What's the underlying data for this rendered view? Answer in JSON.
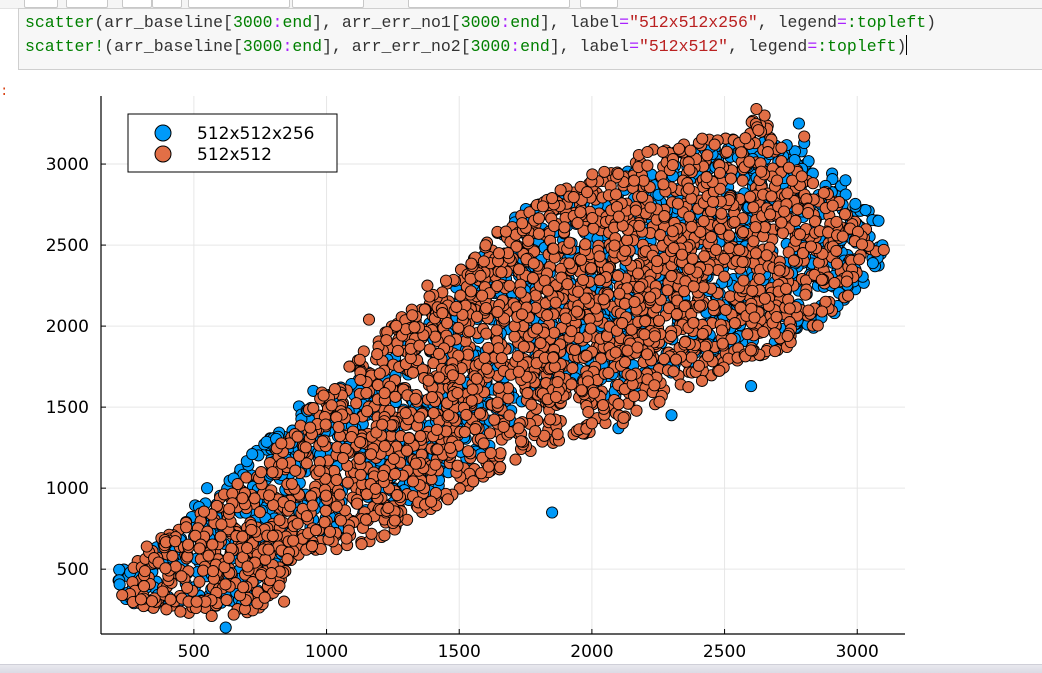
{
  "code_cell": {
    "line1": [
      {
        "t": "scatter",
        "c": "tok-fn"
      },
      {
        "t": "(arr_baseline[",
        "c": "tok-plain"
      },
      {
        "t": "3000",
        "c": "tok-num"
      },
      {
        "t": ":",
        "c": "tok-op"
      },
      {
        "t": "end",
        "c": "tok-kw"
      },
      {
        "t": "], arr_err_no1[",
        "c": "tok-plain"
      },
      {
        "t": "3000",
        "c": "tok-num"
      },
      {
        "t": ":",
        "c": "tok-op"
      },
      {
        "t": "end",
        "c": "tok-kw"
      },
      {
        "t": "], label",
        "c": "tok-plain"
      },
      {
        "t": "=",
        "c": "tok-op"
      },
      {
        "t": "\"512x512x256\"",
        "c": "tok-str"
      },
      {
        "t": ", legend",
        "c": "tok-plain"
      },
      {
        "t": "=",
        "c": "tok-op"
      },
      {
        "t": ":topleft",
        "c": "tok-fn"
      },
      {
        "t": ")",
        "c": "tok-plain"
      }
    ],
    "line2": [
      {
        "t": "scatter!",
        "c": "tok-fn"
      },
      {
        "t": "(arr_baseline[",
        "c": "tok-plain"
      },
      {
        "t": "3000",
        "c": "tok-num"
      },
      {
        "t": ":",
        "c": "tok-op"
      },
      {
        "t": "end",
        "c": "tok-kw"
      },
      {
        "t": "], arr_err_no2[",
        "c": "tok-plain"
      },
      {
        "t": "3000",
        "c": "tok-num"
      },
      {
        "t": ":",
        "c": "tok-op"
      },
      {
        "t": "end",
        "c": "tok-kw"
      },
      {
        "t": "], label",
        "c": "tok-plain"
      },
      {
        "t": "=",
        "c": "tok-op"
      },
      {
        "t": "\"512x512\"",
        "c": "tok-str"
      },
      {
        "t": ", legend",
        "c": "tok-plain"
      },
      {
        "t": "=",
        "c": "tok-op"
      },
      {
        "t": ":topleft",
        "c": "tok-fn"
      },
      {
        "t": ")",
        "c": "tok-plain"
      }
    ]
  },
  "output_prompt": ":",
  "chart_data": {
    "type": "scatter",
    "xlim": [
      150,
      3180
    ],
    "ylim": [
      100,
      3420
    ],
    "xticks": [
      500,
      1000,
      1500,
      2000,
      2500,
      3000
    ],
    "yticks": [
      500,
      1000,
      1500,
      2000,
      2500,
      3000
    ],
    "grid": true,
    "legend_position": "top-left",
    "marker": "circle",
    "series": [
      {
        "name": "512x512x256",
        "color": "#009af9",
        "cloud": [
          [
            210,
            260
          ],
          [
            310,
            270
          ],
          [
            560,
            300
          ],
          [
            750,
            240
          ],
          [
            900,
            800
          ],
          [
            1000,
            700
          ],
          [
            1500,
            1050
          ],
          [
            1850,
            1700
          ],
          [
            2100,
            1520
          ],
          [
            2400,
            1800
          ],
          [
            2700,
            1850
          ],
          [
            2900,
            2000
          ],
          [
            3100,
            2400
          ],
          [
            3100,
            2700
          ],
          [
            2850,
            3050
          ],
          [
            2650,
            3200
          ],
          [
            2450,
            3150
          ],
          [
            2000,
            2900
          ],
          [
            1750,
            2750
          ],
          [
            1400,
            2100
          ],
          [
            1200,
            1750
          ],
          [
            950,
            1600
          ],
          [
            750,
            1250
          ],
          [
            500,
            900
          ],
          [
            300,
            600
          ],
          [
            210,
            500
          ]
        ],
        "extra_points": [
          [
            620,
            140
          ],
          [
            550,
            1000
          ],
          [
            720,
            1210
          ],
          [
            950,
            1600
          ],
          [
            1150,
            1700
          ],
          [
            1850,
            850
          ],
          [
            2600,
            1630
          ],
          [
            2780,
            3250
          ],
          [
            3080,
            2650
          ],
          [
            2100,
            1370
          ],
          [
            2300,
            1450
          ],
          [
            1800,
            2750
          ],
          [
            2800,
            3130
          ],
          [
            260,
            480
          ],
          [
            870,
            1280
          ]
        ]
      },
      {
        "name": "512x512",
        "color": "#e26f46",
        "cloud": [
          [
            220,
            330
          ],
          [
            330,
            250
          ],
          [
            560,
            210
          ],
          [
            760,
            230
          ],
          [
            900,
            600
          ],
          [
            1150,
            640
          ],
          [
            1500,
            950
          ],
          [
            1800,
            1250
          ],
          [
            2100,
            1380
          ],
          [
            2400,
            1650
          ],
          [
            2750,
            1880
          ],
          [
            2920,
            2080
          ],
          [
            3100,
            2480
          ],
          [
            2950,
            2750
          ],
          [
            2750,
            2990
          ],
          [
            2650,
            3320
          ],
          [
            2450,
            3170
          ],
          [
            2200,
            3080
          ],
          [
            1950,
            2900
          ],
          [
            1700,
            2680
          ],
          [
            1450,
            2260
          ],
          [
            1250,
            2020
          ],
          [
            1050,
            1750
          ],
          [
            850,
            1320
          ],
          [
            550,
            880
          ],
          [
            300,
            620
          ]
        ],
        "extra_points": [
          [
            1160,
            2040
          ],
          [
            1380,
            2250
          ],
          [
            1450,
            2280
          ],
          [
            1650,
            2450
          ],
          [
            1850,
            2790
          ],
          [
            2620,
            3340
          ],
          [
            2800,
            3170
          ],
          [
            2000,
            1400
          ],
          [
            1050,
            960
          ],
          [
            840,
            300
          ],
          [
            230,
            340
          ],
          [
            3100,
            2470
          ],
          [
            650,
            220
          ],
          [
            1350,
            1880
          ]
        ]
      }
    ]
  }
}
